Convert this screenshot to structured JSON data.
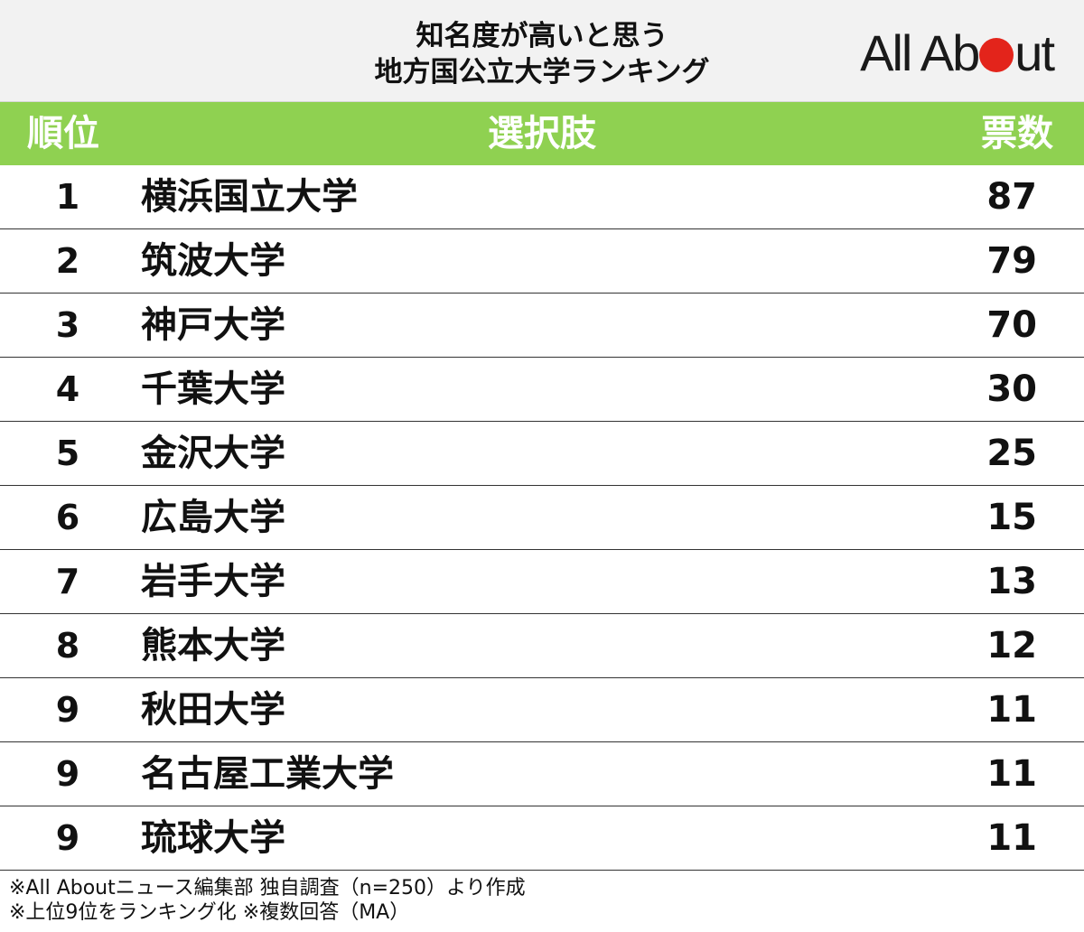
{
  "title": {
    "line1": "知名度が高いと思う",
    "line2": "地方国公立大学ランキング"
  },
  "logo": {
    "part1": "All Ab",
    "part2": "ut"
  },
  "colors": {
    "header_green": "#8fd151",
    "logo_red": "#e3241b"
  },
  "chart_data": {
    "type": "table",
    "columns": [
      "順位",
      "選択肢",
      "票数"
    ],
    "rows": [
      {
        "rank": "1",
        "name": "横浜国立大学",
        "votes": "87"
      },
      {
        "rank": "2",
        "name": "筑波大学",
        "votes": "79"
      },
      {
        "rank": "3",
        "name": "神戸大学",
        "votes": "70"
      },
      {
        "rank": "4",
        "name": "千葉大学",
        "votes": "30"
      },
      {
        "rank": "5",
        "name": "金沢大学",
        "votes": "25"
      },
      {
        "rank": "6",
        "name": "広島大学",
        "votes": "15"
      },
      {
        "rank": "7",
        "name": "岩手大学",
        "votes": "13"
      },
      {
        "rank": "8",
        "name": "熊本大学",
        "votes": "12"
      },
      {
        "rank": "9",
        "name": "秋田大学",
        "votes": "11"
      },
      {
        "rank": "9",
        "name": "名古屋工業大学",
        "votes": "11"
      },
      {
        "rank": "9",
        "name": "琉球大学",
        "votes": "11"
      }
    ]
  },
  "footer": {
    "line1": "※All Aboutニュース編集部 独自調査（n=250）より作成",
    "line2": "※上位9位をランキング化 ※複数回答（MA）"
  }
}
